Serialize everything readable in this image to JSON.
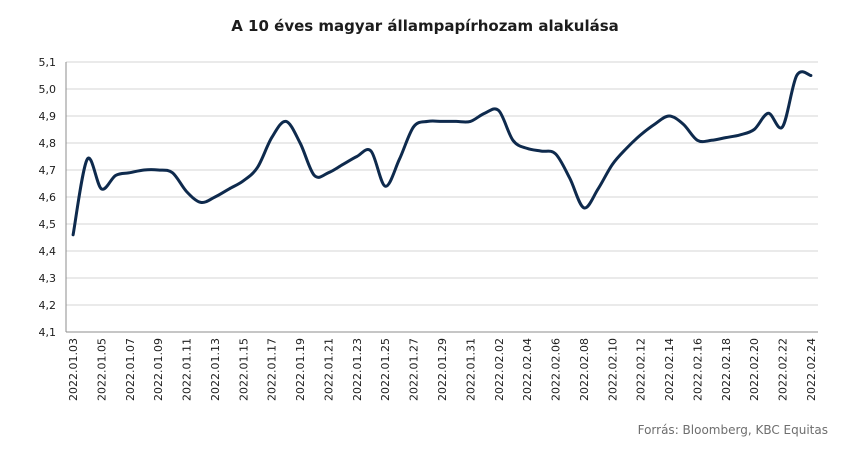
{
  "chart_data": {
    "type": "line",
    "title": "A 10 éves magyar állampapírhozam alakulása",
    "xlabel": "",
    "ylabel": "",
    "ylim": [
      4.1,
      5.1
    ],
    "y_ticks": [
      "4,1",
      "4,2",
      "4,3",
      "4,4",
      "4,5",
      "4,6",
      "4,7",
      "4,8",
      "4,9",
      "5,0",
      "5,1"
    ],
    "x_tick_labels": [
      "2022.01.03",
      "2022.01.05",
      "2022.01.07",
      "2022.01.09",
      "2022.01.11",
      "2022.01.13",
      "2022.01.15",
      "2022.01.17",
      "2022.01.19",
      "2022.01.21",
      "2022.01.23",
      "2022.01.25",
      "2022.01.27",
      "2022.01.29",
      "2022.01.31",
      "2022.02.02",
      "2022.02.04",
      "2022.02.06",
      "2022.02.08",
      "2022.02.10",
      "2022.02.12",
      "2022.02.14",
      "2022.02.16",
      "2022.02.18",
      "2022.02.20",
      "2022.02.22",
      "2022.02.24"
    ],
    "grid": "horizontal",
    "line_color": "#0e2a4d",
    "series": [
      {
        "x": [
          "2022.01.03",
          "2022.01.04",
          "2022.01.05",
          "2022.01.06",
          "2022.01.07",
          "2022.01.08",
          "2022.01.09",
          "2022.01.10",
          "2022.01.11",
          "2022.01.12",
          "2022.01.13",
          "2022.01.14",
          "2022.01.15",
          "2022.01.16",
          "2022.01.17",
          "2022.01.18",
          "2022.01.19",
          "2022.01.20",
          "2022.01.21",
          "2022.01.22",
          "2022.01.23",
          "2022.01.24",
          "2022.01.25",
          "2022.01.26",
          "2022.01.27",
          "2022.01.28",
          "2022.01.29",
          "2022.01.30",
          "2022.01.31",
          "2022.02.01",
          "2022.02.02",
          "2022.02.03",
          "2022.02.04",
          "2022.02.05",
          "2022.02.06",
          "2022.02.07",
          "2022.02.08",
          "2022.02.09",
          "2022.02.10",
          "2022.02.11",
          "2022.02.12",
          "2022.02.13",
          "2022.02.14",
          "2022.02.15",
          "2022.02.16",
          "2022.02.17",
          "2022.02.18",
          "2022.02.19",
          "2022.02.20",
          "2022.02.21",
          "2022.02.22",
          "2022.02.23",
          "2022.02.24"
        ],
        "values": [
          4.46,
          4.74,
          4.63,
          4.68,
          4.69,
          4.7,
          4.7,
          4.69,
          4.62,
          4.58,
          4.6,
          4.63,
          4.66,
          4.71,
          4.82,
          4.88,
          4.8,
          4.68,
          4.69,
          4.72,
          4.75,
          4.77,
          4.64,
          4.74,
          4.86,
          4.88,
          4.88,
          4.88,
          4.88,
          4.91,
          4.92,
          4.81,
          4.78,
          4.77,
          4.76,
          4.67,
          4.56,
          4.63,
          4.72,
          4.78,
          4.83,
          4.87,
          4.9,
          4.87,
          4.81,
          4.81,
          4.82,
          4.83,
          4.85,
          4.91,
          4.86,
          5.05,
          5.05
        ]
      }
    ]
  },
  "source": "Forrás: Bloomberg, KBC Equitas"
}
